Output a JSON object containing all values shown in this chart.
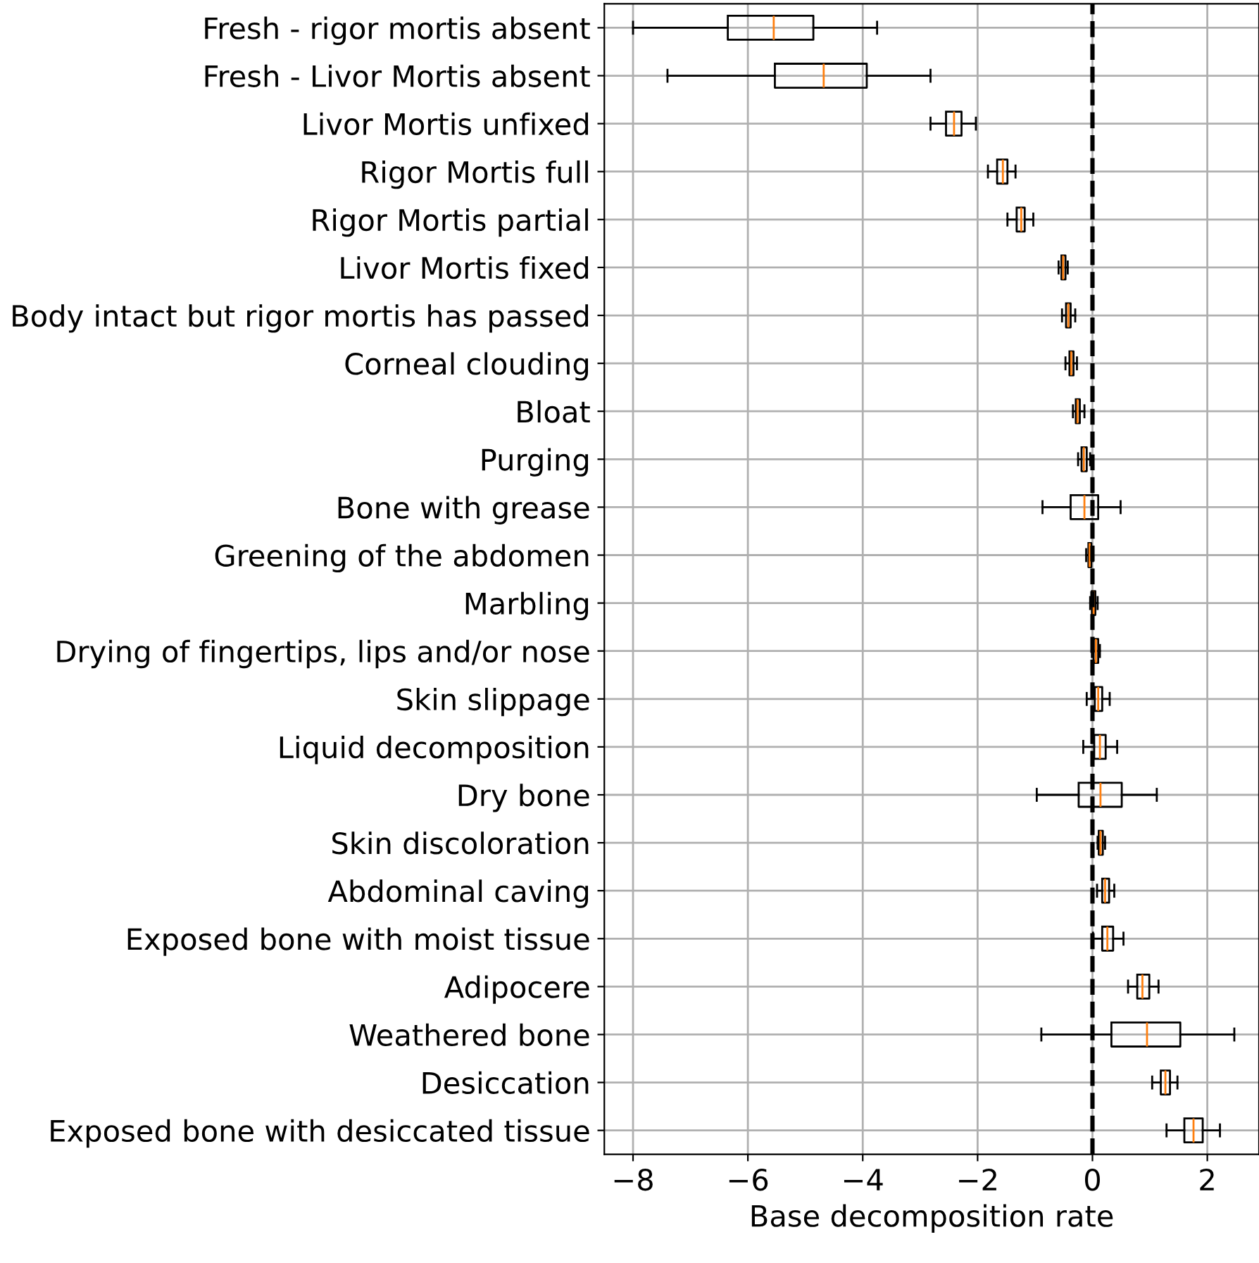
{
  "chart_data": {
    "type": "box",
    "orientation": "horizontal",
    "xlabel": "Base decomposition rate",
    "categories": [
      "Fresh - rigor mortis absent",
      "Fresh - Livor Mortis absent",
      "Livor Mortis unfixed",
      "Rigor Mortis full",
      "Rigor Mortis partial",
      "Livor Mortis fixed",
      "Body intact but rigor mortis has passed",
      "Corneal clouding",
      "Bloat",
      "Purging",
      "Bone with grease",
      "Greening of the abdomen",
      "Marbling",
      "Drying of fingertips, lips and/or nose",
      "Skin slippage",
      "Liquid decomposition",
      "Dry bone",
      "Skin discoloration",
      "Abdominal caving",
      "Exposed bone with moist tissue",
      "Adipocere",
      "Weathered bone",
      "Desiccation",
      "Exposed bone with desiccated tissue"
    ],
    "boxes": [
      {
        "low": -8.0,
        "q1": -6.35,
        "median": -5.55,
        "q3": -4.86,
        "high": -3.75
      },
      {
        "low": -7.4,
        "q1": -5.53,
        "median": -4.68,
        "q3": -3.93,
        "high": -2.82
      },
      {
        "low": -2.82,
        "q1": -2.55,
        "median": -2.41,
        "q3": -2.28,
        "high": -2.03
      },
      {
        "low": -1.82,
        "q1": -1.66,
        "median": -1.56,
        "q3": -1.48,
        "high": -1.34
      },
      {
        "low": -1.48,
        "q1": -1.32,
        "median": -1.24,
        "q3": -1.18,
        "high": -1.03
      },
      {
        "low": -0.59,
        "q1": -0.54,
        "median": -0.51,
        "q3": -0.47,
        "high": -0.43
      },
      {
        "low": -0.53,
        "q1": -0.46,
        "median": -0.42,
        "q3": -0.38,
        "high": -0.3
      },
      {
        "low": -0.47,
        "q1": -0.4,
        "median": -0.37,
        "q3": -0.33,
        "high": -0.27
      },
      {
        "low": -0.34,
        "q1": -0.29,
        "median": -0.26,
        "q3": -0.22,
        "high": -0.14
      },
      {
        "low": -0.25,
        "q1": -0.19,
        "median": -0.15,
        "q3": -0.1,
        "high": -0.04
      },
      {
        "low": -0.87,
        "q1": -0.38,
        "median": -0.14,
        "q3": 0.1,
        "high": 0.49
      },
      {
        "low": -0.11,
        "q1": -0.07,
        "median": -0.05,
        "q3": -0.02,
        "high": 0.01
      },
      {
        "low": -0.04,
        "q1": -0.01,
        "median": 0.02,
        "q3": 0.05,
        "high": 0.09
      },
      {
        "low": -0.01,
        "q1": 0.02,
        "median": 0.06,
        "q3": 0.1,
        "high": 0.13
      },
      {
        "low": -0.1,
        "q1": 0.04,
        "median": 0.1,
        "q3": 0.17,
        "high": 0.3
      },
      {
        "low": -0.16,
        "q1": 0.03,
        "median": 0.13,
        "q3": 0.23,
        "high": 0.43
      },
      {
        "low": -0.97,
        "q1": -0.24,
        "median": 0.14,
        "q3": 0.51,
        "high": 1.12
      },
      {
        "low": 0.09,
        "q1": 0.11,
        "median": 0.14,
        "q3": 0.18,
        "high": 0.22
      },
      {
        "low": 0.08,
        "q1": 0.17,
        "median": 0.22,
        "q3": 0.29,
        "high": 0.38
      },
      {
        "low": 0.01,
        "q1": 0.17,
        "median": 0.26,
        "q3": 0.36,
        "high": 0.54
      },
      {
        "low": 0.62,
        "q1": 0.78,
        "median": 0.87,
        "q3": 0.99,
        "high": 1.15
      },
      {
        "low": -0.89,
        "q1": 0.33,
        "median": 0.95,
        "q3": 1.53,
        "high": 2.47
      },
      {
        "low": 1.04,
        "q1": 1.19,
        "median": 1.27,
        "q3": 1.35,
        "high": 1.48
      },
      {
        "low": 1.29,
        "q1": 1.6,
        "median": 1.76,
        "q3": 1.92,
        "high": 2.22
      }
    ],
    "xlim": [
      -8.5,
      2.9
    ],
    "xticks": [
      -8,
      -6,
      -4,
      -2,
      0,
      2
    ],
    "ref_lines": [
      {
        "axis": "x",
        "value": 0,
        "color": "#000000",
        "line_style": "dashed"
      }
    ],
    "grid": true
  }
}
